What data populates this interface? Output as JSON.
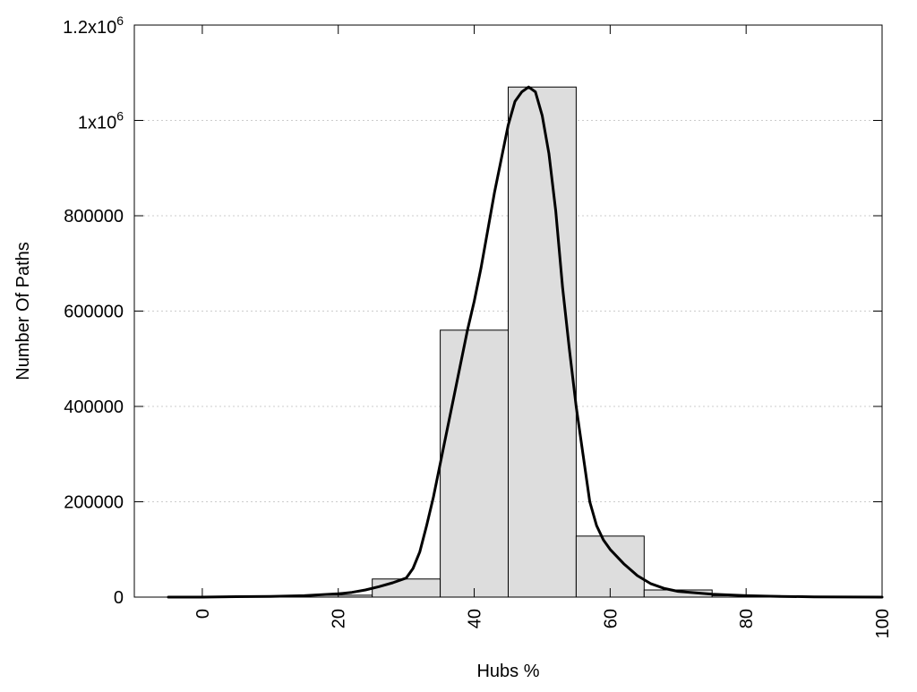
{
  "chart_data": {
    "type": "bar",
    "title": "",
    "xlabel": "Hubs %",
    "ylabel": "Number Of Paths",
    "xlim": [
      -10,
      100
    ],
    "ylim": [
      0,
      1200000
    ],
    "grid": true,
    "x_ticks": [
      {
        "value": 0,
        "label": "0"
      },
      {
        "value": 20,
        "label": "20"
      },
      {
        "value": 40,
        "label": "40"
      },
      {
        "value": 60,
        "label": "60"
      },
      {
        "value": 80,
        "label": "80"
      },
      {
        "value": 100,
        "label": "100"
      }
    ],
    "y_ticks": [
      {
        "value": 0,
        "label": "0"
      },
      {
        "value": 200000,
        "label": "200000"
      },
      {
        "value": 400000,
        "label": "400000"
      },
      {
        "value": 600000,
        "label": "600000"
      },
      {
        "value": 800000,
        "label": "800000"
      },
      {
        "value": 1000000,
        "label": "1x10",
        "sup": "6"
      },
      {
        "value": 1200000,
        "label": "1.2x10",
        "sup": "6"
      }
    ],
    "bars": [
      {
        "x0": -5,
        "x1": 5,
        "value": 500
      },
      {
        "x0": 5,
        "x1": 15,
        "value": 1000
      },
      {
        "x0": 15,
        "x1": 25,
        "value": 4000
      },
      {
        "x0": 25,
        "x1": 35,
        "value": 38000
      },
      {
        "x0": 35,
        "x1": 45,
        "value": 560000
      },
      {
        "x0": 45,
        "x1": 55,
        "value": 1070000
      },
      {
        "x0": 55,
        "x1": 65,
        "value": 128000
      },
      {
        "x0": 65,
        "x1": 75,
        "value": 15000
      },
      {
        "x0": 75,
        "x1": 85,
        "value": 3000
      },
      {
        "x0": 85,
        "x1": 95,
        "value": 800
      },
      {
        "x0": 95,
        "x1": 100,
        "value": 200
      }
    ],
    "curve": {
      "x": [
        -5,
        0,
        5,
        10,
        15,
        20,
        22,
        24,
        26,
        28,
        30,
        31,
        32,
        33,
        34,
        35,
        36,
        37,
        38,
        39,
        40,
        41,
        42,
        43,
        44,
        45,
        46,
        47,
        48,
        49,
        50,
        51,
        52,
        53,
        54,
        55,
        56,
        57,
        58,
        59,
        60,
        62,
        64,
        66,
        68,
        70,
        75,
        80,
        85,
        90,
        95,
        100
      ],
      "y": [
        0,
        0,
        1000,
        1500,
        3000,
        7000,
        10000,
        15000,
        22000,
        30000,
        40000,
        60000,
        95000,
        150000,
        210000,
        280000,
        350000,
        420000,
        490000,
        560000,
        620000,
        690000,
        770000,
        850000,
        920000,
        990000,
        1040000,
        1060000,
        1070000,
        1060000,
        1010000,
        930000,
        810000,
        650000,
        520000,
        400000,
        300000,
        200000,
        150000,
        120000,
        100000,
        70000,
        45000,
        28000,
        18000,
        12000,
        6000,
        3000,
        1500,
        500,
        100,
        0
      ]
    },
    "colors": {
      "bar_fill": "#dddddd",
      "bar_stroke": "#000000",
      "curve": "#000000",
      "grid": "#cccccc"
    }
  }
}
